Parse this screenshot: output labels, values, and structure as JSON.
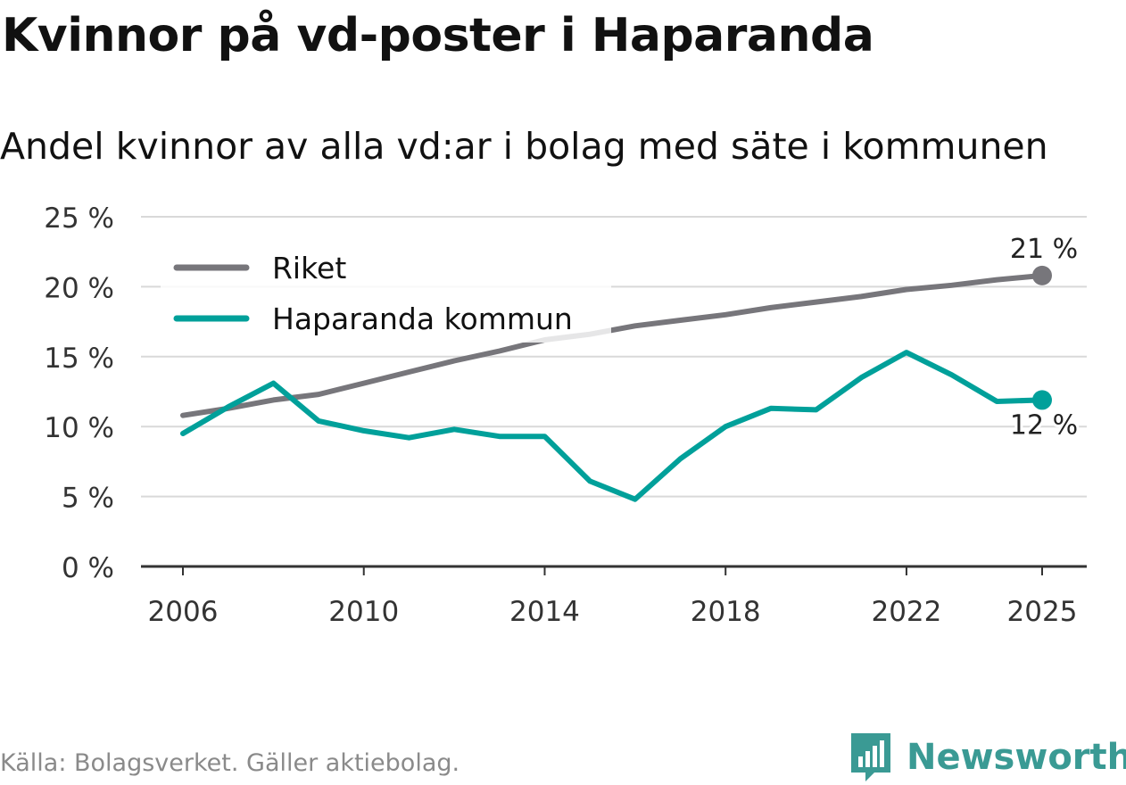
{
  "title": "Kvinnor på vd-poster i Haparanda",
  "subtitle": "Andel kvinnor av alla vd:ar i bolag med säte i kommunen",
  "source": "Källa: Bolagsverket. Gäller aktiebolag.",
  "brand": {
    "name": "Newsworthy",
    "icon": "newsworthy-logo-icon",
    "color": "#3a9a94"
  },
  "chart_data": {
    "type": "line",
    "title": "Kvinnor på vd-poster i Haparanda",
    "xlabel": "",
    "ylabel": "",
    "xlim": [
      2006,
      2025
    ],
    "ylim": [
      0,
      25
    ],
    "y_ticks": [
      0,
      5,
      10,
      15,
      20,
      25
    ],
    "y_tick_labels": [
      "0 %",
      "5 %",
      "10 %",
      "15 %",
      "20 %",
      "25 %"
    ],
    "x_ticks": [
      2006,
      2010,
      2014,
      2018,
      2022,
      2025
    ],
    "x_tick_labels": [
      "2006",
      "2010",
      "2014",
      "2018",
      "2022",
      "2025"
    ],
    "grid": true,
    "legend_position": "top-left",
    "x": [
      2006,
      2007,
      2008,
      2009,
      2010,
      2011,
      2012,
      2013,
      2014,
      2015,
      2016,
      2017,
      2018,
      2019,
      2020,
      2021,
      2022,
      2023,
      2024,
      2025
    ],
    "series": [
      {
        "name": "Riket",
        "color": "#77767b",
        "values": [
          10.8,
          11.3,
          11.9,
          12.3,
          13.1,
          13.9,
          14.7,
          15.4,
          16.2,
          16.6,
          17.2,
          17.6,
          18.0,
          18.5,
          18.9,
          19.3,
          19.8,
          20.1,
          20.5,
          20.8
        ],
        "end_label": "21 %"
      },
      {
        "name": "Haparanda kommun",
        "color": "#00a09a",
        "values": [
          9.5,
          11.4,
          13.1,
          10.4,
          9.7,
          9.2,
          9.8,
          9.3,
          9.3,
          6.1,
          4.8,
          7.7,
          10.0,
          11.3,
          11.2,
          13.5,
          15.3,
          13.7,
          11.8,
          11.9
        ],
        "end_label": "12 %"
      }
    ]
  }
}
